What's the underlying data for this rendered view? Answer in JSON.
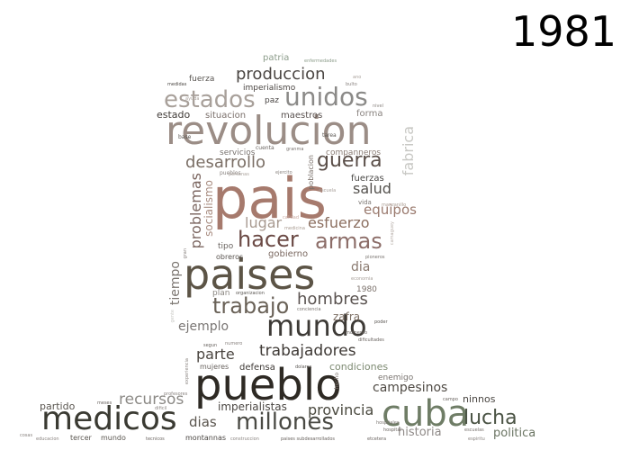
{
  "year": "1981",
  "words": [
    {
      "text": "pais",
      "color": "#a67a6d"
    },
    {
      "text": "paises",
      "color": "#5c5446"
    },
    {
      "text": "pueblo",
      "color": "#2e2a24"
    },
    {
      "text": "revolucion",
      "color": "#9b8d86"
    },
    {
      "text": "medicos",
      "color": "#3a3a32"
    },
    {
      "text": "cuba",
      "color": "#6f7d66"
    },
    {
      "text": "mundo",
      "color": "#3d3a36"
    },
    {
      "text": "unidos",
      "color": "#8b8a88"
    },
    {
      "text": "estados",
      "color": "#a8a09a"
    },
    {
      "text": "millones",
      "color": "#4a4a44"
    },
    {
      "text": "lucha",
      "color": "#4a5344"
    },
    {
      "text": "trabajo",
      "color": "#6a6258"
    },
    {
      "text": "hacer",
      "color": "#6b4a45"
    },
    {
      "text": "armas",
      "color": "#8c6d68"
    },
    {
      "text": "guerra",
      "color": "#5a4e48"
    },
    {
      "text": "produccion",
      "color": "#4b4643"
    },
    {
      "text": "desarrollo",
      "color": "#7b6f66"
    },
    {
      "text": "esfuerzo",
      "color": "#8c6f60"
    },
    {
      "text": "salud",
      "color": "#55524e"
    },
    {
      "text": "equipos",
      "color": "#9a7a6e"
    },
    {
      "text": "lugar",
      "color": "#a89a90"
    },
    {
      "text": "hombres",
      "color": "#5a5350"
    },
    {
      "text": "trabajadores",
      "color": "#3f3a36"
    },
    {
      "text": "recursos",
      "color": "#8c8a86"
    },
    {
      "text": "provincia",
      "color": "#4b4a40"
    },
    {
      "text": "campesinos",
      "color": "#4f4a44"
    },
    {
      "text": "historia",
      "color": "#8f8a88"
    },
    {
      "text": "politica",
      "color": "#6b7563"
    },
    {
      "text": "dias",
      "color": "#5a554e"
    },
    {
      "text": "parte",
      "color": "#4a4540"
    },
    {
      "text": "ejemplo",
      "color": "#7a7674"
    },
    {
      "text": "imperialistas",
      "color": "#4a4642"
    },
    {
      "text": "partido",
      "color": "#5a5650"
    },
    {
      "text": "zafra",
      "color": "#7d7065"
    },
    {
      "text": "dia",
      "color": "#8a7a70"
    },
    {
      "text": "condiciones",
      "color": "#7d8a72"
    },
    {
      "text": "fabrica",
      "color": "#c8c8c4"
    },
    {
      "text": "problemas",
      "color": "#7b6660"
    },
    {
      "text": "tiempo",
      "color": "#7b7570"
    },
    {
      "text": "socialismo",
      "color": "#a88c80"
    },
    {
      "text": "estado",
      "color": "#3f3a36"
    },
    {
      "text": "situacion",
      "color": "#7a6f6a"
    },
    {
      "text": "maestros",
      "color": "#5a5250"
    },
    {
      "text": "forma",
      "color": "#8a8480"
    },
    {
      "text": "imperialismo",
      "color": "#4a4542"
    },
    {
      "text": "fuerza",
      "color": "#5a5652"
    },
    {
      "text": "paz",
      "color": "#4a4644"
    },
    {
      "text": "patria",
      "color": "#8c9c8a"
    },
    {
      "text": "servicios",
      "color": "#7a7470"
    },
    {
      "text": "companneros",
      "color": "#8a7c74"
    },
    {
      "text": "fuerzas",
      "color": "#4a4846"
    },
    {
      "text": "poblacion",
      "color": "#7a706a"
    },
    {
      "text": "tipo",
      "color": "#6a6460"
    },
    {
      "text": "obreros",
      "color": "#5a5450"
    },
    {
      "text": "gobierno",
      "color": "#7a6860"
    },
    {
      "text": "plan",
      "color": "#8a8680"
    },
    {
      "text": "1980",
      "color": "#7a706a"
    },
    {
      "text": "defensa",
      "color": "#3f3a36"
    },
    {
      "text": "mujeres",
      "color": "#6a6460"
    },
    {
      "text": "enemigo",
      "color": "#7a7470"
    },
    {
      "text": "ninnos",
      "color": "#4a4642"
    },
    {
      "text": "tercer",
      "color": "#5a5650"
    },
    {
      "text": "mundo",
      "color": "#5a5650"
    },
    {
      "text": "montannas",
      "color": "#4a4642"
    },
    {
      "text": "vida",
      "color": "#7a7470"
    },
    {
      "text": "cuenta",
      "color": "#6a6460"
    },
    {
      "text": "tarea",
      "color": "#5a5652"
    },
    {
      "text": "base",
      "color": "#5a5652"
    },
    {
      "text": "pueblos",
      "color": "#8a8480"
    },
    {
      "text": "medidas",
      "color": "#4a4642"
    },
    {
      "text": "enfermedades",
      "color": "#8c9c8a"
    },
    {
      "text": "nivel",
      "color": "#8a8480"
    },
    {
      "text": "bulto",
      "color": "#8a8480"
    },
    {
      "text": "granma",
      "color": "#7a7470"
    },
    {
      "text": "ejercito",
      "color": "#8a8480"
    },
    {
      "text": "calidad",
      "color": "#c8a8a0"
    },
    {
      "text": "medicina",
      "color": "#a89a90"
    },
    {
      "text": "pioneros",
      "color": "#7a7470"
    },
    {
      "text": "economia",
      "color": "#a8a09a"
    },
    {
      "text": "organizacion",
      "color": "#5a5652"
    },
    {
      "text": "conciencia",
      "color": "#7a7470"
    },
    {
      "text": "poder",
      "color": "#5a5652"
    },
    {
      "text": "momento",
      "color": "#6a6460"
    },
    {
      "text": "dificultades",
      "color": "#6a6460"
    },
    {
      "text": "segun",
      "color": "#6a6460"
    },
    {
      "text": "numero",
      "color": "#8a8480"
    },
    {
      "text": "dolares",
      "color": "#5a5652"
    },
    {
      "text": "hecho",
      "color": "#7a706a"
    },
    {
      "text": "profesores",
      "color": "#8a8480"
    },
    {
      "text": "meses",
      "color": "#6a6460"
    },
    {
      "text": "dificil",
      "color": "#8a8480"
    },
    {
      "text": "campo",
      "color": "#6a6460"
    },
    {
      "text": "hospital",
      "color": "#6a6460"
    },
    {
      "text": "escuelas",
      "color": "#7a7470"
    },
    {
      "text": "espiritu",
      "color": "#8a8480"
    },
    {
      "text": "hospitales",
      "color": "#7a7470"
    },
    {
      "text": "etcetera",
      "color": "#6a6460"
    },
    {
      "text": "construccion",
      "color": "#8a8480"
    },
    {
      "text": "paises subdesarrollados",
      "color": "#6a6460"
    },
    {
      "text": "tecnicos",
      "color": "#6a6460"
    },
    {
      "text": "educacion",
      "color": "#8a8480"
    },
    {
      "text": "cosas",
      "color": "#8a8480"
    },
    {
      "text": "experiencia",
      "color": "#8a8480"
    },
    {
      "text": "gran",
      "color": "#8a8480"
    },
    {
      "text": "manzanillo",
      "color": "#a89a90"
    },
    {
      "text": "ayuda",
      "color": "#a8a09a"
    },
    {
      "text": "escuela",
      "color": "#a8a09a"
    },
    {
      "text": "gente",
      "color": "#c8c8c4"
    },
    {
      "text": "personas",
      "color": "#a8a09a"
    },
    {
      "text": "camaguey",
      "color": "#b8b0aa"
    },
    {
      "text": "ano",
      "color": "#a8a09a"
    }
  ]
}
